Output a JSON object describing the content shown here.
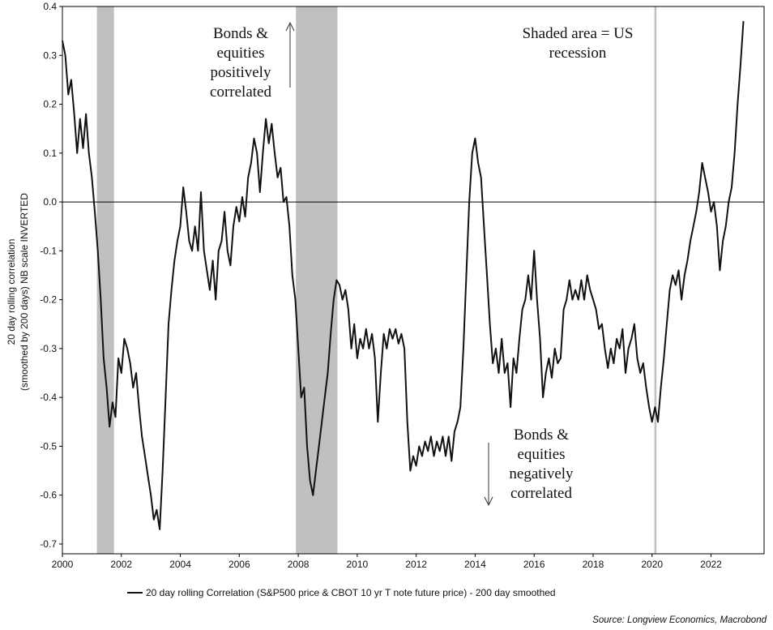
{
  "chart_data": {
    "type": "line",
    "y_label_lines": [
      "20 day rolling correlation",
      "(smoothed by 200 days) NB scale INVERTED"
    ],
    "ylim": [
      -0.72,
      0.4
    ],
    "xlim": [
      2000,
      2023.8
    ],
    "y_ticks": [
      0.4,
      0.3,
      0.2,
      0.1,
      0.0,
      -0.1,
      -0.2,
      -0.3,
      -0.4,
      -0.5,
      -0.6,
      -0.7
    ],
    "y_tick_labels": [
      "0.4",
      "0.3",
      "0.2",
      "0.1",
      "0.0",
      "-0.1",
      "-0.2",
      "-0.3",
      "-0.4",
      "-0.5",
      "-0.6",
      "-0.7"
    ],
    "x_ticks": [
      2000,
      2002,
      2004,
      2006,
      2008,
      2010,
      2012,
      2014,
      2016,
      2018,
      2020,
      2022
    ],
    "x_tick_labels": [
      "2000",
      "2002",
      "2004",
      "2006",
      "2008",
      "2010",
      "2012",
      "2014",
      "2016",
      "2018",
      "2020",
      "2022"
    ],
    "zero_line": 0,
    "grid": false,
    "recession_shading": [
      {
        "start": 2001.17,
        "end": 2001.75
      },
      {
        "start": 2007.92,
        "end": 2009.33
      },
      {
        "start": 2020.08,
        "end": 2020.15
      }
    ],
    "annotations": [
      {
        "lines": [
          "Bonds &",
          "equities",
          "positively",
          "correlated"
        ],
        "arrow": "up"
      },
      {
        "lines": [
          "Shaded area = US",
          "recession"
        ]
      },
      {
        "lines": [
          "Bonds &",
          "equities",
          "negatively",
          "correlated"
        ],
        "arrow": "down"
      }
    ],
    "series": [
      {
        "name": "20 day rolling Correlation (S&P500 price & CBOT 10 yr T note future price) - 200 day smoothed",
        "color": "#111111",
        "points": [
          [
            2000.0,
            0.33
          ],
          [
            2000.1,
            0.3
          ],
          [
            2000.2,
            0.22
          ],
          [
            2000.3,
            0.25
          ],
          [
            2000.4,
            0.18
          ],
          [
            2000.5,
            0.1
          ],
          [
            2000.6,
            0.17
          ],
          [
            2000.7,
            0.11
          ],
          [
            2000.8,
            0.18
          ],
          [
            2000.9,
            0.1
          ],
          [
            2001.0,
            0.05
          ],
          [
            2001.1,
            -0.02
          ],
          [
            2001.2,
            -0.1
          ],
          [
            2001.3,
            -0.2
          ],
          [
            2001.4,
            -0.32
          ],
          [
            2001.5,
            -0.38
          ],
          [
            2001.6,
            -0.46
          ],
          [
            2001.7,
            -0.41
          ],
          [
            2001.8,
            -0.44
          ],
          [
            2001.9,
            -0.32
          ],
          [
            2002.0,
            -0.35
          ],
          [
            2002.1,
            -0.28
          ],
          [
            2002.2,
            -0.3
          ],
          [
            2002.3,
            -0.33
          ],
          [
            2002.4,
            -0.38
          ],
          [
            2002.5,
            -0.35
          ],
          [
            2002.6,
            -0.42
          ],
          [
            2002.7,
            -0.48
          ],
          [
            2002.8,
            -0.52
          ],
          [
            2002.9,
            -0.56
          ],
          [
            2003.0,
            -0.6
          ],
          [
            2003.1,
            -0.65
          ],
          [
            2003.2,
            -0.63
          ],
          [
            2003.3,
            -0.67
          ],
          [
            2003.4,
            -0.55
          ],
          [
            2003.5,
            -0.4
          ],
          [
            2003.6,
            -0.25
          ],
          [
            2003.7,
            -0.18
          ],
          [
            2003.8,
            -0.12
          ],
          [
            2003.9,
            -0.08
          ],
          [
            2004.0,
            -0.05
          ],
          [
            2004.1,
            0.03
          ],
          [
            2004.2,
            -0.02
          ],
          [
            2004.3,
            -0.08
          ],
          [
            2004.4,
            -0.1
          ],
          [
            2004.5,
            -0.05
          ],
          [
            2004.6,
            -0.1
          ],
          [
            2004.7,
            0.02
          ],
          [
            2004.8,
            -0.1
          ],
          [
            2004.9,
            -0.14
          ],
          [
            2005.0,
            -0.18
          ],
          [
            2005.1,
            -0.12
          ],
          [
            2005.2,
            -0.2
          ],
          [
            2005.3,
            -0.1
          ],
          [
            2005.4,
            -0.08
          ],
          [
            2005.5,
            -0.02
          ],
          [
            2005.6,
            -0.1
          ],
          [
            2005.7,
            -0.13
          ],
          [
            2005.8,
            -0.05
          ],
          [
            2005.9,
            -0.01
          ],
          [
            2006.0,
            -0.04
          ],
          [
            2006.1,
            0.01
          ],
          [
            2006.2,
            -0.03
          ],
          [
            2006.3,
            0.05
          ],
          [
            2006.4,
            0.08
          ],
          [
            2006.5,
            0.13
          ],
          [
            2006.6,
            0.1
          ],
          [
            2006.7,
            0.02
          ],
          [
            2006.8,
            0.1
          ],
          [
            2006.9,
            0.17
          ],
          [
            2007.0,
            0.12
          ],
          [
            2007.1,
            0.16
          ],
          [
            2007.2,
            0.1
          ],
          [
            2007.3,
            0.05
          ],
          [
            2007.4,
            0.07
          ],
          [
            2007.5,
            0.0
          ],
          [
            2007.6,
            0.01
          ],
          [
            2007.7,
            -0.05
          ],
          [
            2007.8,
            -0.15
          ],
          [
            2007.9,
            -0.2
          ],
          [
            2008.0,
            -0.3
          ],
          [
            2008.1,
            -0.4
          ],
          [
            2008.2,
            -0.38
          ],
          [
            2008.3,
            -0.5
          ],
          [
            2008.4,
            -0.57
          ],
          [
            2008.5,
            -0.6
          ],
          [
            2008.6,
            -0.55
          ],
          [
            2008.7,
            -0.5
          ],
          [
            2008.8,
            -0.45
          ],
          [
            2008.9,
            -0.4
          ],
          [
            2009.0,
            -0.35
          ],
          [
            2009.1,
            -0.27
          ],
          [
            2009.2,
            -0.2
          ],
          [
            2009.3,
            -0.16
          ],
          [
            2009.4,
            -0.17
          ],
          [
            2009.5,
            -0.2
          ],
          [
            2009.6,
            -0.18
          ],
          [
            2009.7,
            -0.22
          ],
          [
            2009.8,
            -0.3
          ],
          [
            2009.9,
            -0.25
          ],
          [
            2010.0,
            -0.32
          ],
          [
            2010.1,
            -0.28
          ],
          [
            2010.2,
            -0.3
          ],
          [
            2010.3,
            -0.26
          ],
          [
            2010.4,
            -0.3
          ],
          [
            2010.5,
            -0.27
          ],
          [
            2010.6,
            -0.32
          ],
          [
            2010.7,
            -0.45
          ],
          [
            2010.8,
            -0.35
          ],
          [
            2010.9,
            -0.27
          ],
          [
            2011.0,
            -0.3
          ],
          [
            2011.1,
            -0.26
          ],
          [
            2011.2,
            -0.28
          ],
          [
            2011.3,
            -0.26
          ],
          [
            2011.4,
            -0.29
          ],
          [
            2011.5,
            -0.27
          ],
          [
            2011.6,
            -0.3
          ],
          [
            2011.7,
            -0.45
          ],
          [
            2011.8,
            -0.55
          ],
          [
            2011.9,
            -0.52
          ],
          [
            2012.0,
            -0.54
          ],
          [
            2012.1,
            -0.5
          ],
          [
            2012.2,
            -0.52
          ],
          [
            2012.3,
            -0.49
          ],
          [
            2012.4,
            -0.51
          ],
          [
            2012.5,
            -0.48
          ],
          [
            2012.6,
            -0.52
          ],
          [
            2012.7,
            -0.49
          ],
          [
            2012.8,
            -0.51
          ],
          [
            2012.9,
            -0.48
          ],
          [
            2013.0,
            -0.52
          ],
          [
            2013.1,
            -0.48
          ],
          [
            2013.2,
            -0.53
          ],
          [
            2013.3,
            -0.47
          ],
          [
            2013.4,
            -0.45
          ],
          [
            2013.5,
            -0.42
          ],
          [
            2013.6,
            -0.3
          ],
          [
            2013.7,
            -0.15
          ],
          [
            2013.8,
            0.0
          ],
          [
            2013.9,
            0.1
          ],
          [
            2014.0,
            0.13
          ],
          [
            2014.1,
            0.08
          ],
          [
            2014.2,
            0.05
          ],
          [
            2014.3,
            -0.05
          ],
          [
            2014.4,
            -0.15
          ],
          [
            2014.5,
            -0.25
          ],
          [
            2014.6,
            -0.33
          ],
          [
            2014.7,
            -0.3
          ],
          [
            2014.8,
            -0.35
          ],
          [
            2014.9,
            -0.28
          ],
          [
            2015.0,
            -0.35
          ],
          [
            2015.1,
            -0.33
          ],
          [
            2015.2,
            -0.42
          ],
          [
            2015.3,
            -0.32
          ],
          [
            2015.4,
            -0.35
          ],
          [
            2015.5,
            -0.28
          ],
          [
            2015.6,
            -0.22
          ],
          [
            2015.7,
            -0.2
          ],
          [
            2015.8,
            -0.15
          ],
          [
            2015.9,
            -0.2
          ],
          [
            2016.0,
            -0.1
          ],
          [
            2016.1,
            -0.2
          ],
          [
            2016.2,
            -0.28
          ],
          [
            2016.3,
            -0.4
          ],
          [
            2016.4,
            -0.35
          ],
          [
            2016.5,
            -0.32
          ],
          [
            2016.6,
            -0.36
          ],
          [
            2016.7,
            -0.3
          ],
          [
            2016.8,
            -0.33
          ],
          [
            2016.9,
            -0.32
          ],
          [
            2017.0,
            -0.22
          ],
          [
            2017.1,
            -0.2
          ],
          [
            2017.2,
            -0.16
          ],
          [
            2017.3,
            -0.2
          ],
          [
            2017.4,
            -0.18
          ],
          [
            2017.5,
            -0.2
          ],
          [
            2017.6,
            -0.16
          ],
          [
            2017.7,
            -0.2
          ],
          [
            2017.8,
            -0.15
          ],
          [
            2017.9,
            -0.18
          ],
          [
            2018.0,
            -0.2
          ],
          [
            2018.1,
            -0.22
          ],
          [
            2018.2,
            -0.26
          ],
          [
            2018.3,
            -0.25
          ],
          [
            2018.4,
            -0.3
          ],
          [
            2018.5,
            -0.34
          ],
          [
            2018.6,
            -0.3
          ],
          [
            2018.7,
            -0.33
          ],
          [
            2018.8,
            -0.28
          ],
          [
            2018.9,
            -0.3
          ],
          [
            2019.0,
            -0.26
          ],
          [
            2019.1,
            -0.35
          ],
          [
            2019.2,
            -0.3
          ],
          [
            2019.3,
            -0.28
          ],
          [
            2019.4,
            -0.25
          ],
          [
            2019.5,
            -0.32
          ],
          [
            2019.6,
            -0.35
          ],
          [
            2019.7,
            -0.33
          ],
          [
            2019.8,
            -0.38
          ],
          [
            2019.9,
            -0.42
          ],
          [
            2020.0,
            -0.45
          ],
          [
            2020.1,
            -0.42
          ],
          [
            2020.2,
            -0.45
          ],
          [
            2020.3,
            -0.38
          ],
          [
            2020.4,
            -0.32
          ],
          [
            2020.5,
            -0.25
          ],
          [
            2020.6,
            -0.18
          ],
          [
            2020.7,
            -0.15
          ],
          [
            2020.8,
            -0.17
          ],
          [
            2020.9,
            -0.14
          ],
          [
            2021.0,
            -0.2
          ],
          [
            2021.1,
            -0.15
          ],
          [
            2021.2,
            -0.12
          ],
          [
            2021.3,
            -0.08
          ],
          [
            2021.4,
            -0.05
          ],
          [
            2021.5,
            -0.02
          ],
          [
            2021.6,
            0.02
          ],
          [
            2021.7,
            0.08
          ],
          [
            2021.8,
            0.05
          ],
          [
            2021.9,
            0.02
          ],
          [
            2022.0,
            -0.02
          ],
          [
            2022.1,
            0.0
          ],
          [
            2022.2,
            -0.05
          ],
          [
            2022.3,
            -0.14
          ],
          [
            2022.4,
            -0.08
          ],
          [
            2022.5,
            -0.05
          ],
          [
            2022.6,
            0.0
          ],
          [
            2022.7,
            0.03
          ],
          [
            2022.8,
            0.1
          ],
          [
            2022.9,
            0.2
          ],
          [
            2023.0,
            0.28
          ],
          [
            2023.1,
            0.37
          ]
        ]
      }
    ],
    "source": "Source: Longview Economics, Macrobond"
  }
}
